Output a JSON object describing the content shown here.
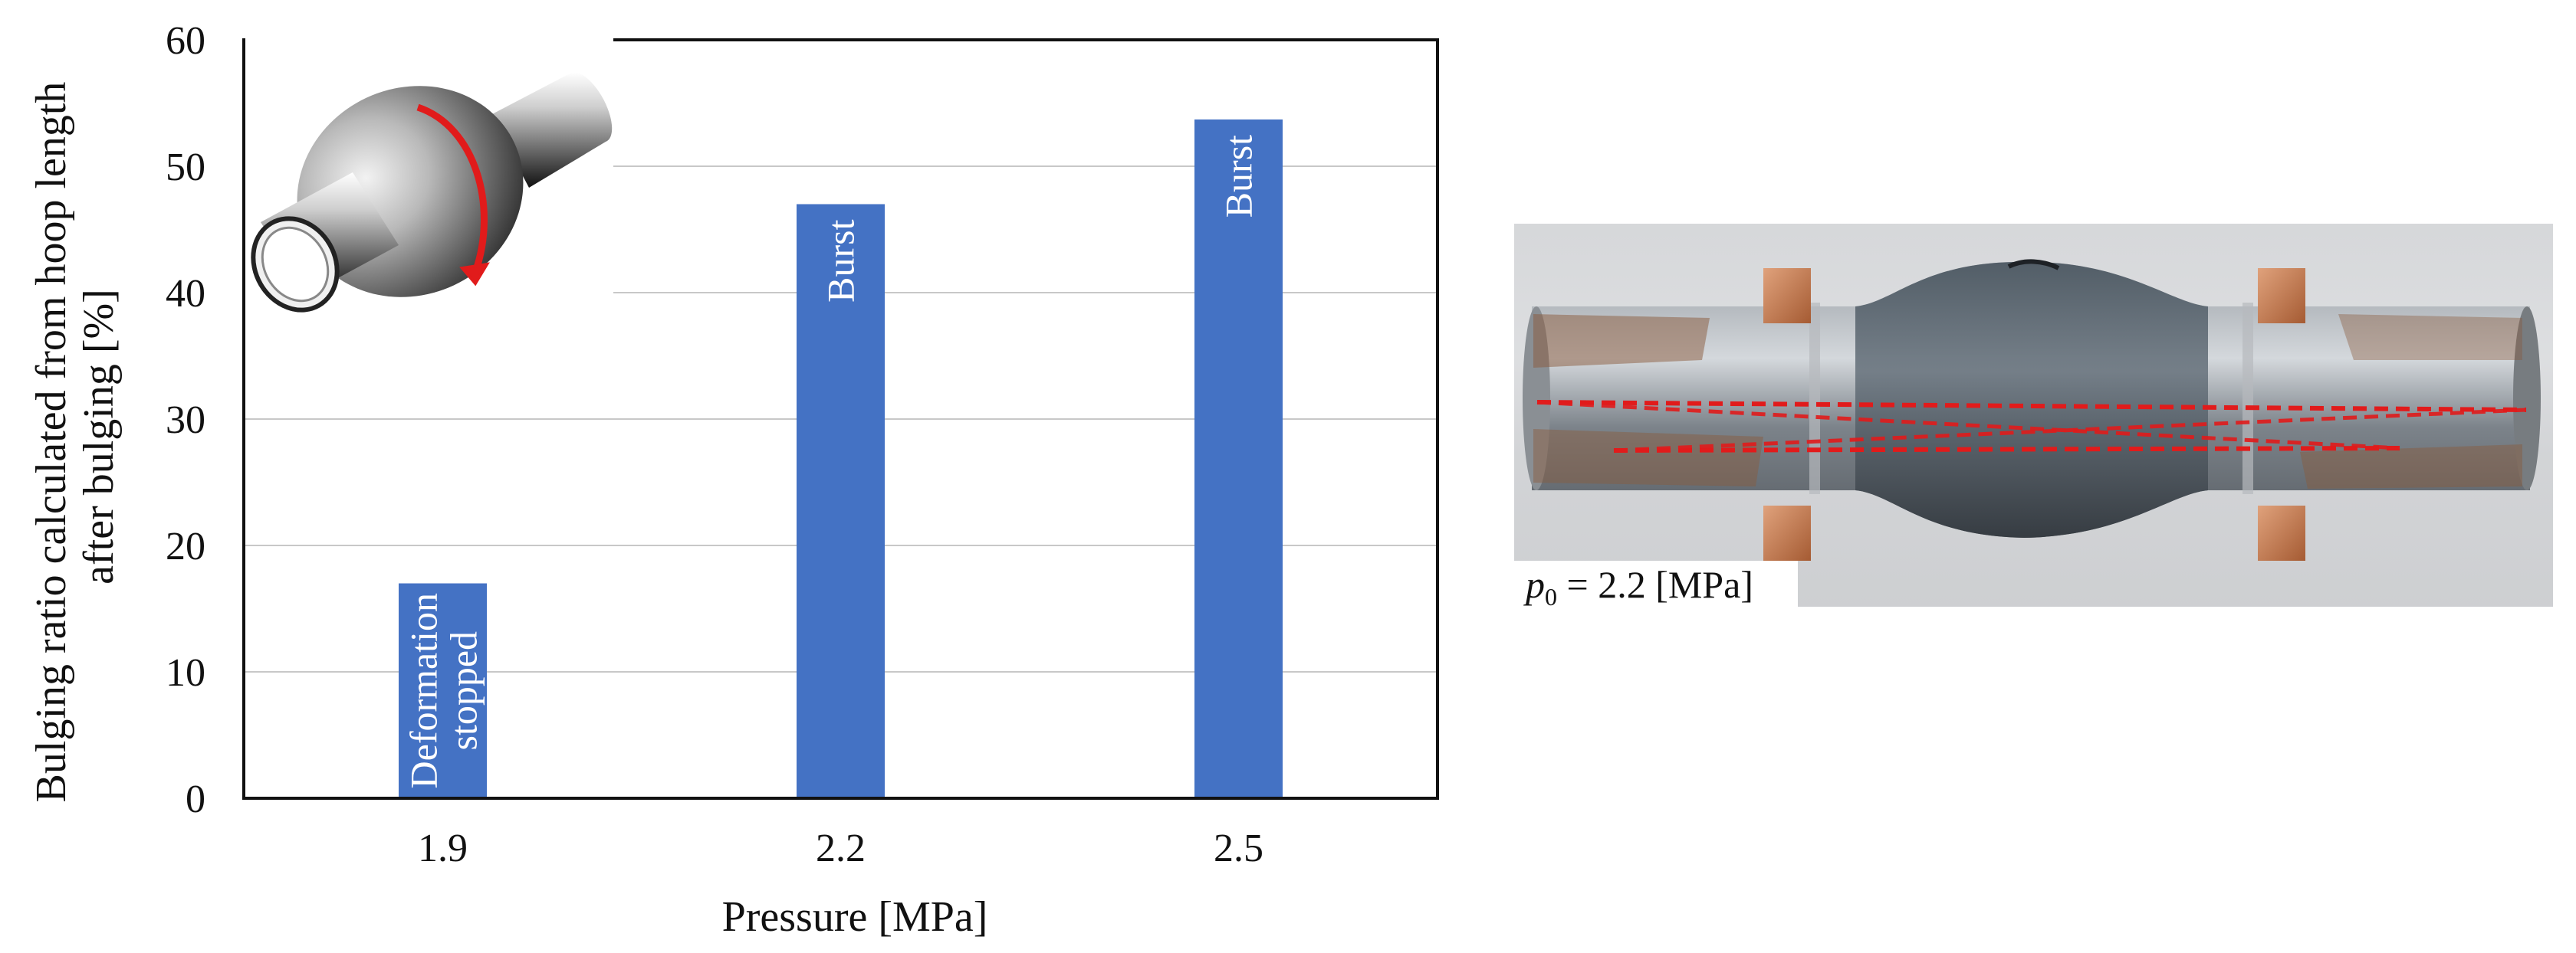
{
  "chart_data": {
    "type": "bar",
    "title": "",
    "xlabel": "Pressure [MPa]",
    "ylabel_lines": [
      "Bulging ratio calculated from hoop length",
      "after bulging [%]"
    ],
    "categories": [
      "1.9",
      "2.2",
      "2.5"
    ],
    "values": [
      17,
      47,
      53.7
    ],
    "bar_labels": [
      [
        "Deformation",
        "stopped"
      ],
      [
        "Burst"
      ],
      [
        "Burst"
      ]
    ],
    "ylim": [
      0,
      60
    ],
    "yticks": [
      "0",
      "10",
      "20",
      "30",
      "40",
      "50",
      "60"
    ],
    "grid": true,
    "bar_color": "#4472C4"
  },
  "photo": {
    "caption_var": "p",
    "caption_sub": "0",
    "caption_rest": " = 2.2 [MPa]"
  },
  "colors": {
    "dashed_line": "#e11b1b",
    "gridline": "#c8c8c8"
  }
}
